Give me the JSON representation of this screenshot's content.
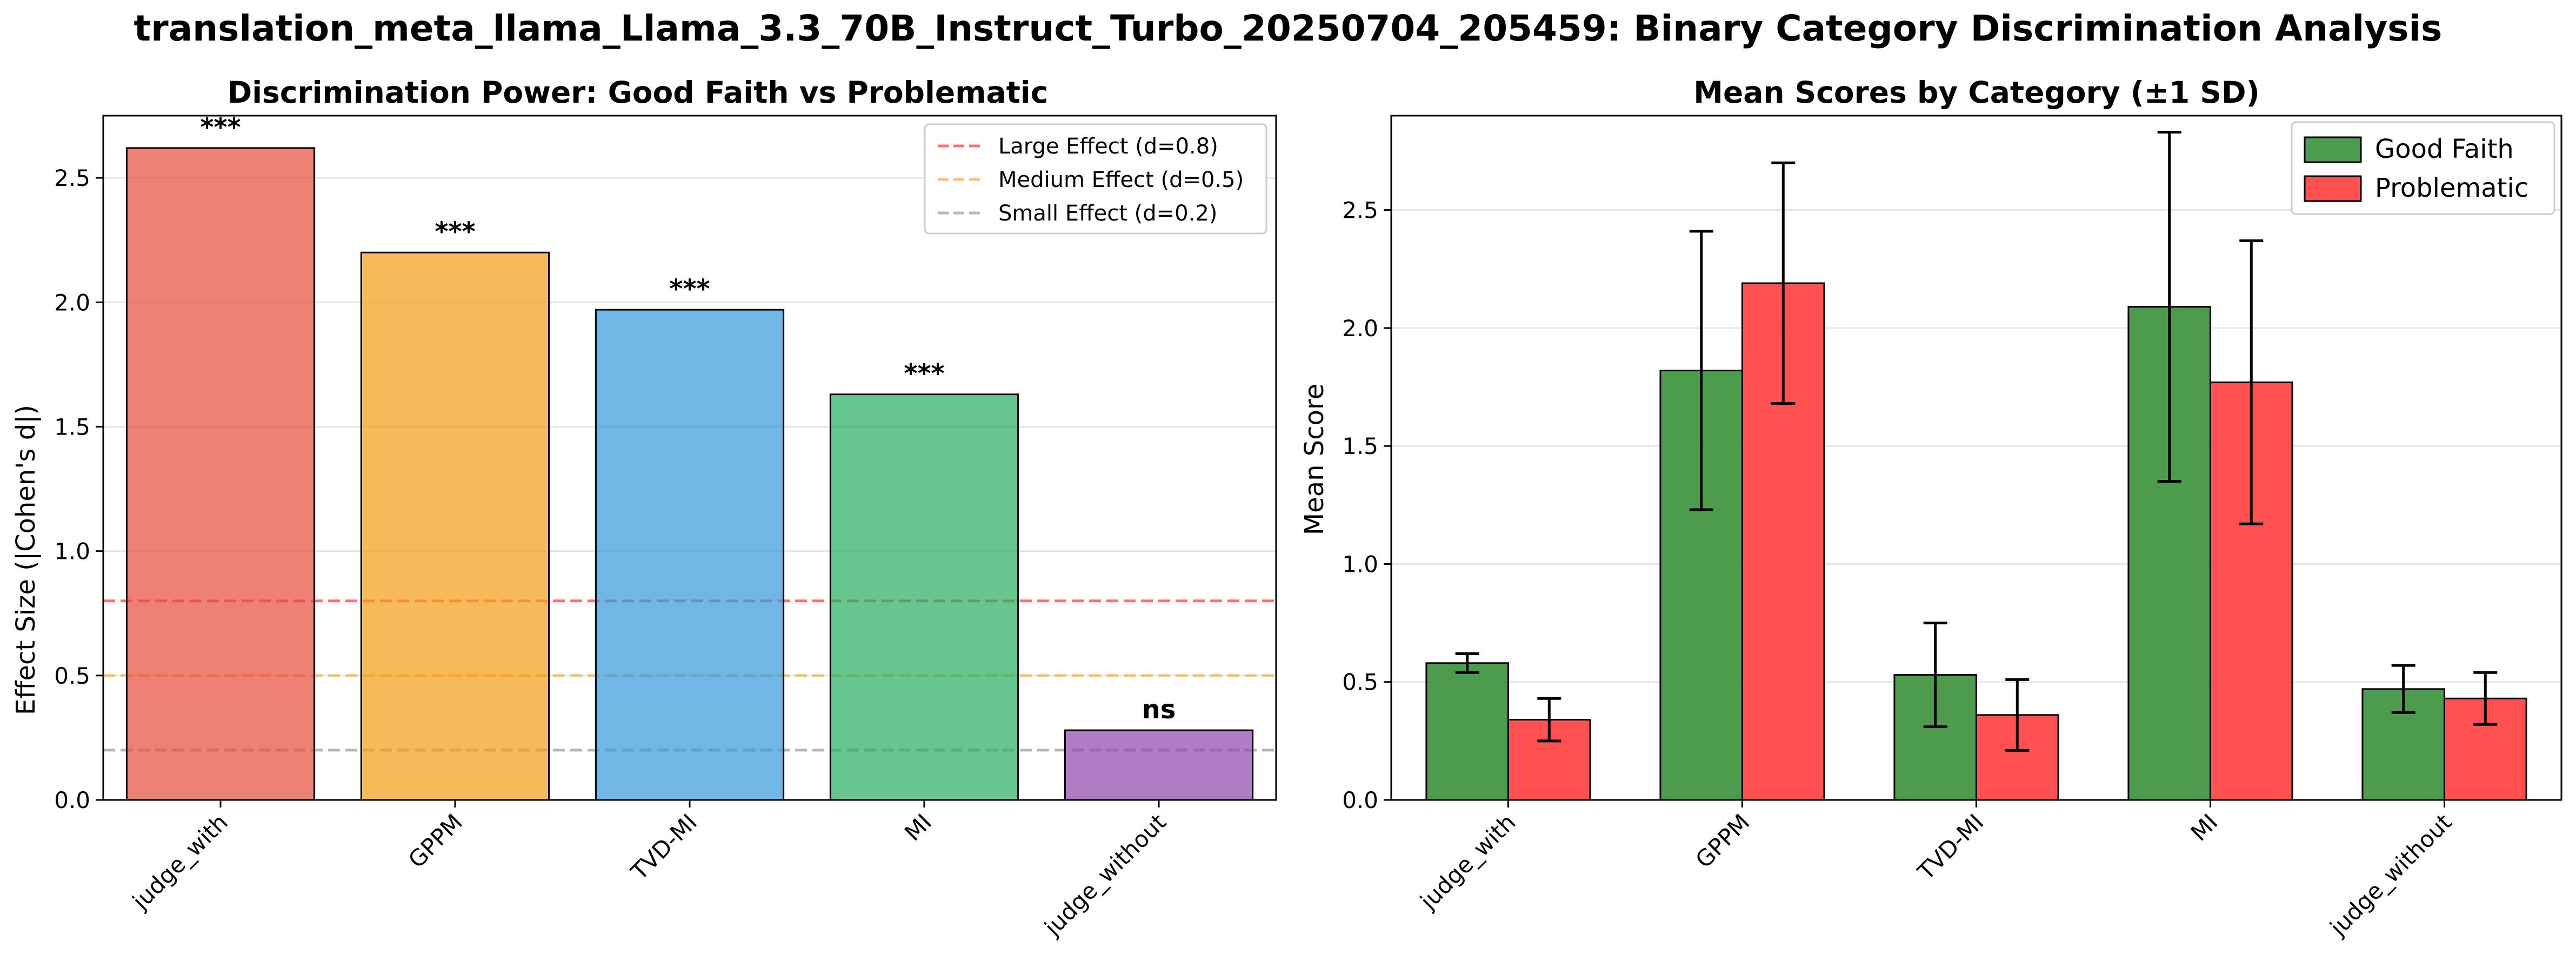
{
  "suptitle": "translation_meta_llama_Llama_3.3_70B_Instruct_Turbo_20250704_205459: Binary Category Discrimination Analysis",
  "chart_data": [
    {
      "type": "bar",
      "title": "Discrimination Power: Good Faith vs Problematic",
      "xlabel": "",
      "ylabel": "Effect Size (|Cohen's d|)",
      "categories": [
        "judge_with",
        "GPPM",
        "TVD-MI",
        "MI",
        "judge_without"
      ],
      "values": [
        2.62,
        2.2,
        1.97,
        1.63,
        0.28
      ],
      "significance": [
        "***",
        "***",
        "***",
        "***",
        "ns"
      ],
      "bar_colors": [
        "#e74c3c",
        "#f39c12",
        "#3498db",
        "#27ae60",
        "#8e44ad"
      ],
      "ylim": [
        0,
        2.75
      ],
      "yticks": [
        0.0,
        0.5,
        1.0,
        1.5,
        2.0,
        2.5
      ],
      "reference_lines": [
        {
          "label": "Large Effect (d=0.8)",
          "value": 0.8,
          "color": "#ff4d4d"
        },
        {
          "label": "Medium Effect (d=0.5)",
          "value": 0.5,
          "color": "#ffb347"
        },
        {
          "label": "Small Effect (d=0.2)",
          "value": 0.2,
          "color": "#a6a6a6"
        }
      ],
      "legend_position": "top-right",
      "grid": "y"
    },
    {
      "type": "bar",
      "title": "Mean Scores by Category (±1 SD)",
      "xlabel": "",
      "ylabel": "Mean Score",
      "categories": [
        "judge_with",
        "GPPM",
        "TVD-MI",
        "MI",
        "judge_without"
      ],
      "series": [
        {
          "name": "Good Faith",
          "color": "#2e8b2e",
          "values": [
            0.58,
            1.82,
            0.53,
            2.09,
            0.47
          ],
          "sd": [
            0.04,
            0.59,
            0.22,
            0.74,
            0.1
          ]
        },
        {
          "name": "Problematic",
          "color": "#ff3333",
          "values": [
            0.34,
            2.19,
            0.36,
            1.77,
            0.43
          ],
          "sd": [
            0.09,
            0.51,
            0.15,
            0.6,
            0.11
          ]
        }
      ],
      "ylim": [
        0,
        2.9
      ],
      "yticks": [
        0.0,
        0.5,
        1.0,
        1.5,
        2.0,
        2.5
      ],
      "legend_position": "top-right",
      "grid": "y"
    }
  ]
}
